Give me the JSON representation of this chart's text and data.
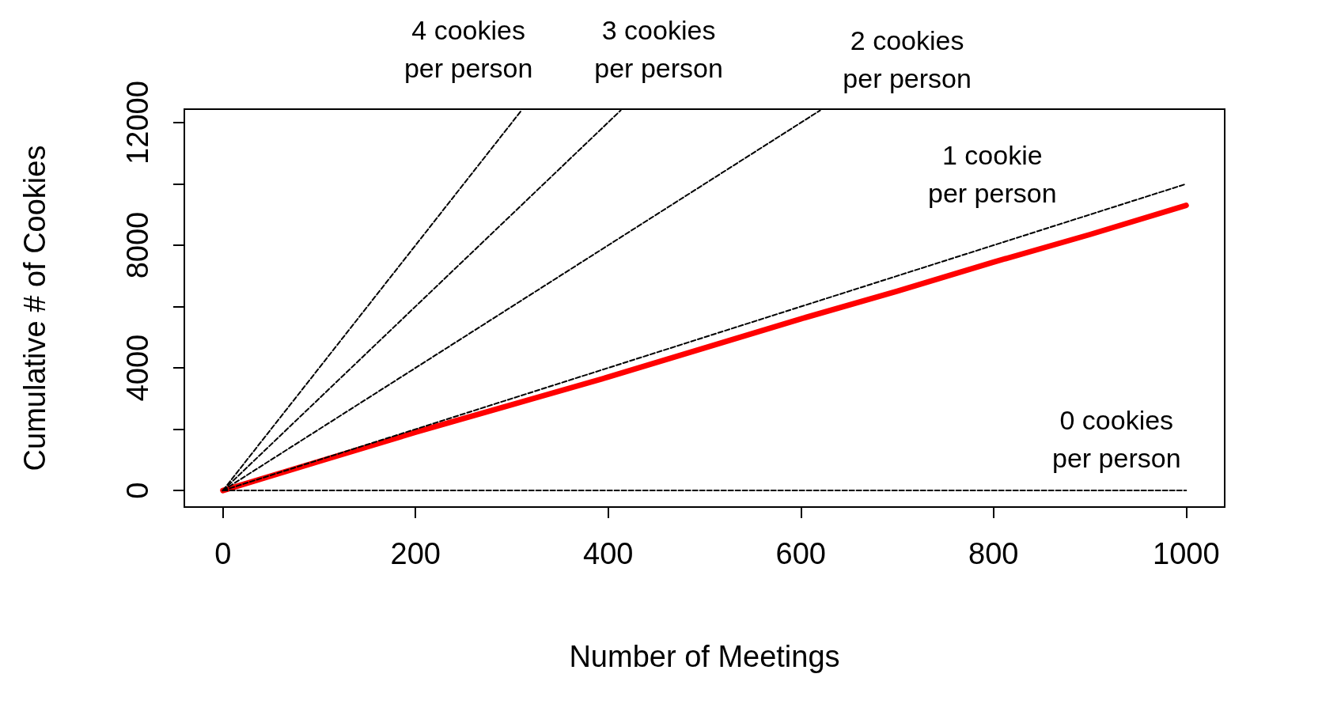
{
  "chart_data": {
    "type": "line",
    "xlabel": "Number of Meetings",
    "ylabel": "Cumulative # of Cookies",
    "xlim": [
      -40,
      1040
    ],
    "ylim": [
      -540,
      12440
    ],
    "xticks": [
      0,
      200,
      400,
      600,
      800,
      1000
    ],
    "yticks": [
      0,
      {
        "value": 2000,
        "label": null
      },
      4000,
      {
        "value": 6000,
        "label": null
      },
      8000,
      {
        "value": 10000,
        "label": null
      },
      12000
    ],
    "grid": false,
    "legend": false,
    "series": [
      {
        "name": "4 cookies\nper person",
        "color": "#000000",
        "line_style": "dashed",
        "x": [
          0,
          310
        ],
        "values": [
          0,
          12400
        ]
      },
      {
        "name": "3 cookies\nper person",
        "color": "#000000",
        "line_style": "dashed",
        "x": [
          0,
          413
        ],
        "values": [
          0,
          12400
        ]
      },
      {
        "name": "2 cookies\nper person",
        "color": "#000000",
        "line_style": "dashed",
        "x": [
          0,
          620
        ],
        "values": [
          0,
          12400
        ]
      },
      {
        "name": "1 cookie\nper person",
        "color": "#000000",
        "line_style": "dashed",
        "x": [
          0,
          1000
        ],
        "values": [
          0,
          10000
        ]
      },
      {
        "name": "0 cookies\nper person",
        "color": "#000000",
        "line_style": "dashed",
        "x": [
          0,
          1000
        ],
        "values": [
          0,
          0
        ]
      },
      {
        "color": "#ff0000",
        "line_style": "solid",
        "x": [
          0,
          100,
          200,
          300,
          400,
          500,
          600,
          700,
          800,
          900,
          1000
        ],
        "values": [
          0,
          950,
          1900,
          2800,
          3700,
          4650,
          5600,
          6500,
          7450,
          8350,
          9300
        ]
      }
    ]
  }
}
